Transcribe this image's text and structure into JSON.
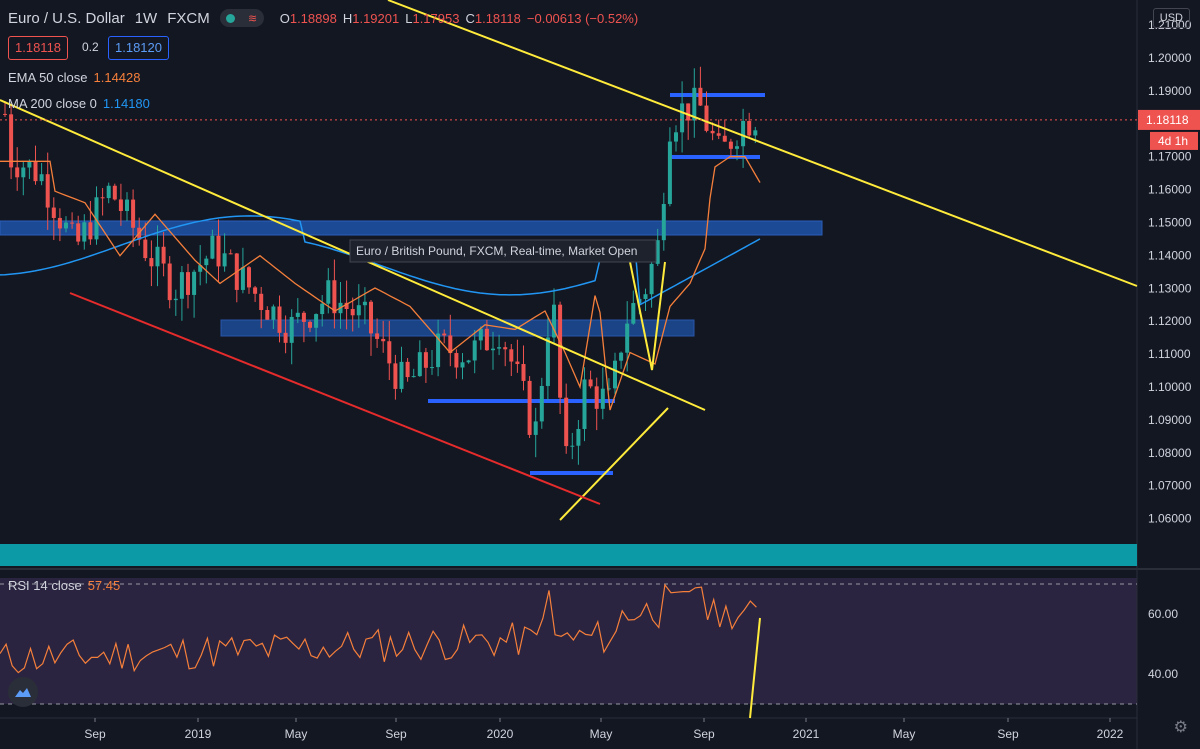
{
  "header": {
    "title": "Euro / U.S. Dollar",
    "timeframe": "1W",
    "broker": "FXCM",
    "ohlc": {
      "o_label": "O",
      "o": "1.18898",
      "h_label": "H",
      "h": "1.19201",
      "l_label": "L",
      "l": "1.17953",
      "c_label": "C",
      "c": "1.18118",
      "change": "−0.00613 (−0.52%)"
    }
  },
  "quote": {
    "bid": "1.18118",
    "spread": "0.2",
    "ask": "1.18120"
  },
  "indicators": {
    "ema": {
      "label": "EMA 50 close",
      "value": "1.14428",
      "color": "#f57f3b"
    },
    "ma": {
      "label": "MA 200 close 0",
      "value": "1.14180",
      "color": "#2962ff"
    },
    "rsi": {
      "label": "RSI 14 close",
      "value": "57.45",
      "color": "#f57f3b"
    }
  },
  "price_scale": {
    "currency": "USD",
    "ticks": [
      "1.21000",
      "1.20000",
      "1.19000",
      "1.18000",
      "1.17000",
      "1.16000",
      "1.15000",
      "1.14000",
      "1.13000",
      "1.12000",
      "1.11000",
      "1.10000",
      "1.09000",
      "1.08000",
      "1.07000",
      "1.06000"
    ],
    "last_price": "1.18118",
    "countdown": "4d 1h"
  },
  "rsi_scale": {
    "ticks": [
      "60.00",
      "40.00"
    ]
  },
  "time_axis": {
    "labels": [
      "Sep",
      "2019",
      "May",
      "Sep",
      "2020",
      "May",
      "Sep",
      "2021",
      "May",
      "Sep",
      "2022"
    ]
  },
  "tooltip": "Euro / British Pound, FXCM, Real-time, Market Open",
  "colors": {
    "background": "#131722",
    "up": "#26a69a",
    "down": "#ef5350",
    "trend": "#ffeb3b",
    "support": "#e52b2b",
    "zone": "#1e53a8",
    "teal_band": "#0b9aa6",
    "rsi_bg": "#2a2440"
  },
  "chart_data": {
    "type": "candlestick",
    "price_range": [
      1.055,
      1.21
    ],
    "rsi_range": [
      28,
      72
    ],
    "notes": "Weekly EURUSD, mid-2018 to late-2020, with drawn trendlines, horizontal zones and RSI 14."
  }
}
